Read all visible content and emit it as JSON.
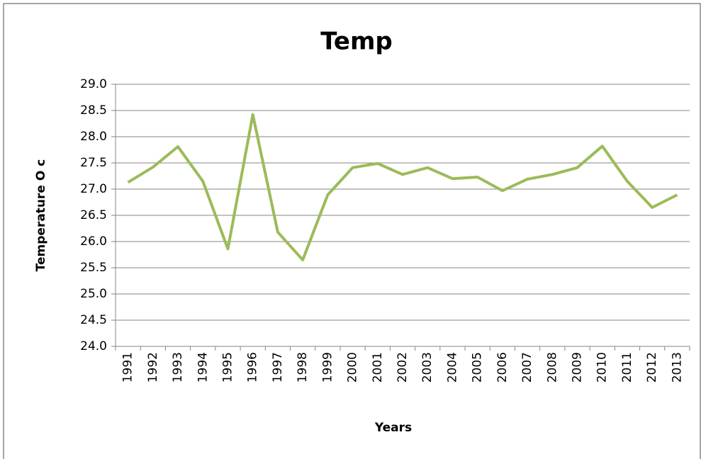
{
  "chart_data": {
    "type": "line",
    "title": "Temp",
    "x_label": "Years",
    "y_label": "Temperature O c",
    "categories": [
      "1991",
      "1992",
      "1993",
      "1994",
      "1995",
      "1996",
      "1997",
      "1998",
      "1999",
      "2000",
      "2001",
      "2002",
      "2003",
      "2004",
      "2005",
      "2006",
      "2007",
      "2008",
      "2009",
      "2010",
      "2011",
      "2012",
      "2013"
    ],
    "series": [
      {
        "name": "Temp",
        "color": "#9bbb59",
        "values": [
          27.13,
          27.42,
          27.81,
          27.15,
          25.86,
          28.42,
          26.18,
          25.65,
          26.89,
          27.41,
          27.49,
          27.28,
          27.41,
          27.2,
          27.23,
          26.97,
          27.19,
          27.28,
          27.41,
          27.82,
          27.15,
          26.65,
          26.89
        ]
      }
    ],
    "ylim": [
      24,
      29
    ],
    "yticks": [
      {
        "value": 24,
        "label": "24.0"
      },
      {
        "value": 24.5,
        "label": "24.5"
      },
      {
        "value": 25,
        "label": "25.0"
      },
      {
        "value": 25.5,
        "label": "25.5"
      },
      {
        "value": 26,
        "label": "26.0"
      },
      {
        "value": 26.5,
        "label": "26.5"
      },
      {
        "value": 27,
        "label": "27.0"
      },
      {
        "value": 27.5,
        "label": "27.5"
      },
      {
        "value": 28,
        "label": "28.0"
      },
      {
        "value": 28.5,
        "label": "28.5"
      },
      {
        "value": 29,
        "label": "29.0"
      }
    ],
    "grid": true
  }
}
